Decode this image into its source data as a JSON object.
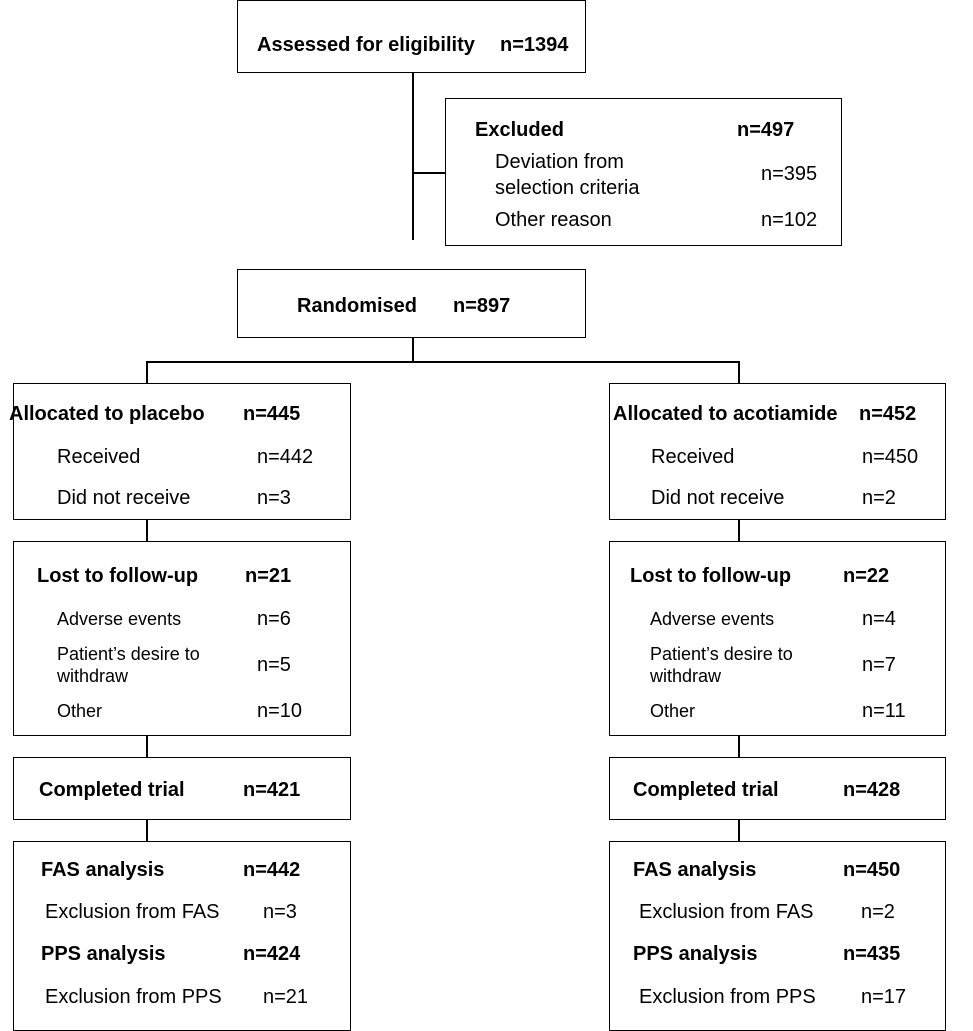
{
  "assessed": {
    "label": "Assessed for eligibility",
    "n": "n=1394"
  },
  "excluded": {
    "label": "Excluded",
    "n": "n=497",
    "items": [
      {
        "label_line1": "Deviation from",
        "label_line2": "selection criteria",
        "n": "n=395"
      },
      {
        "label": "Other reason",
        "n": "n=102"
      }
    ]
  },
  "randomised": {
    "label": "Randomised",
    "n": "n=897"
  },
  "placebo": {
    "allocated": {
      "label": "Allocated to placebo",
      "n": "n=445",
      "received": {
        "label": "Received",
        "n": "n=442"
      },
      "not_received": {
        "label": "Did not receive",
        "n": "n=3"
      }
    },
    "lost": {
      "label": "Lost to follow-up",
      "n": "n=21",
      "adverse": {
        "label": "Adverse events",
        "n": "n=6"
      },
      "desire": {
        "label_line1": "Patient’s desire to",
        "label_line2": "withdraw",
        "n": "n=5"
      },
      "other": {
        "label": "Other",
        "n": "n=10"
      }
    },
    "completed": {
      "label": "Completed trial",
      "n": "n=421"
    },
    "analysis": {
      "fas": {
        "label": "FAS analysis",
        "n": "n=442"
      },
      "fas_excl": {
        "label": "Exclusion from FAS",
        "n": "n=3"
      },
      "pps": {
        "label": "PPS analysis",
        "n": "n=424"
      },
      "pps_excl": {
        "label": "Exclusion from PPS",
        "n": "n=21"
      }
    }
  },
  "acotiamide": {
    "allocated": {
      "label": "Allocated to acotiamide",
      "n": "n=452",
      "received": {
        "label": "Received",
        "n": "n=450"
      },
      "not_received": {
        "label": "Did not receive",
        "n": "n=2"
      }
    },
    "lost": {
      "label": "Lost to follow-up",
      "n": "n=22",
      "adverse": {
        "label": "Adverse events",
        "n": "n=4"
      },
      "desire": {
        "label_line1": "Patient’s desire to",
        "label_line2": "withdraw",
        "n": "n=7"
      },
      "other": {
        "label": "Other",
        "n": "n=11"
      }
    },
    "completed": {
      "label": "Completed trial",
      "n": "n=428"
    },
    "analysis": {
      "fas": {
        "label": "FAS analysis",
        "n": "n=450"
      },
      "fas_excl": {
        "label": "Exclusion from FAS",
        "n": "n=2"
      },
      "pps": {
        "label": "PPS analysis",
        "n": "n=435"
      },
      "pps_excl": {
        "label": "Exclusion from PPS",
        "n": "n=17"
      }
    }
  }
}
